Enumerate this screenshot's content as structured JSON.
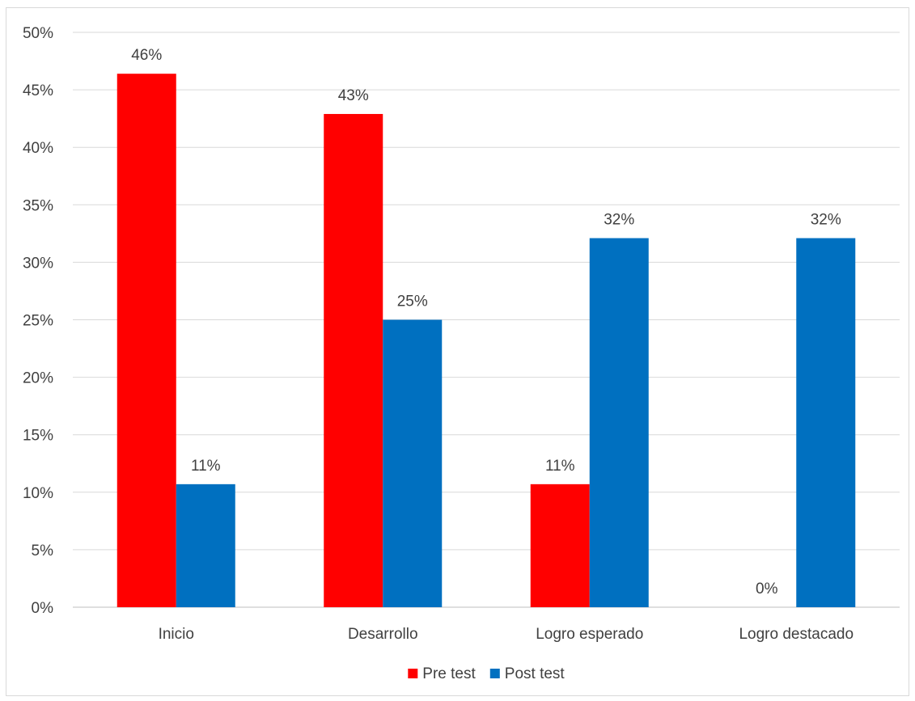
{
  "chart_data": {
    "type": "bar",
    "categories": [
      "Inicio",
      "Desarrollo",
      "Logro esperado",
      "Logro destacado"
    ],
    "series": [
      {
        "name": "Pre test",
        "color": "#ff0000",
        "values": [
          46.4,
          42.9,
          10.7,
          0
        ],
        "labels": [
          "46%",
          "43%",
          "11%",
          "0%"
        ]
      },
      {
        "name": "Post test",
        "color": "#0070c0",
        "values": [
          10.7,
          25.0,
          32.1,
          32.1
        ],
        "labels": [
          "11%",
          "25%",
          "32%",
          "32%"
        ]
      }
    ],
    "ylim": [
      0,
      50
    ],
    "yticks": [
      0,
      5,
      10,
      15,
      20,
      25,
      30,
      35,
      40,
      45,
      50
    ],
    "ytick_labels": [
      "0%",
      "5%",
      "10%",
      "15%",
      "20%",
      "25%",
      "30%",
      "35%",
      "40%",
      "45%",
      "50%"
    ],
    "grid": true,
    "legend_position": "bottom-center"
  }
}
